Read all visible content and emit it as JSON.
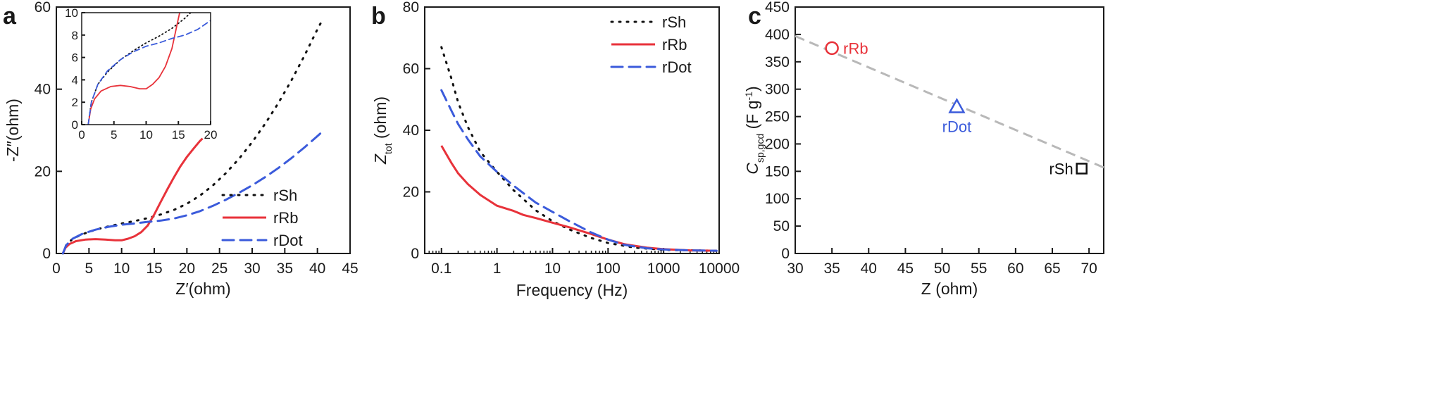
{
  "colors": {
    "rSh": "#111111",
    "rRb": "#e8323a",
    "rDot": "#3b5bdb",
    "fit": "#b8b8b8",
    "axis": "#1a1a1a"
  },
  "panels": [
    {
      "id": "a",
      "label": "a"
    },
    {
      "id": "b",
      "label": "b"
    },
    {
      "id": "c",
      "label": "c"
    }
  ],
  "chart_data": [
    {
      "panel": "a",
      "type": "line",
      "xlabel": "Z′(ohm)",
      "ylabel": "-Z″(ohm)",
      "xlim": [
        0,
        45
      ],
      "ylim": [
        0,
        60
      ],
      "xticks": [
        0,
        5,
        10,
        15,
        20,
        25,
        30,
        35,
        40,
        45
      ],
      "yticks": [
        0,
        20,
        40,
        60
      ],
      "legend": {
        "placement": "lower-right",
        "entries": [
          "rSh",
          "rRb",
          "rDot"
        ]
      },
      "series": [
        {
          "name": "rSh",
          "style": "dotted",
          "color": "#111111",
          "points": [
            [
              1,
              0
            ],
            [
              1.5,
              2
            ],
            [
              2.5,
              3.6
            ],
            [
              4,
              4.7
            ],
            [
              6,
              5.8
            ],
            [
              8,
              6.6
            ],
            [
              10,
              7.3
            ],
            [
              12,
              7.9
            ],
            [
              14,
              8.6
            ],
            [
              16,
              9.5
            ],
            [
              18,
              10.6
            ],
            [
              20,
              12.1
            ],
            [
              22,
              14.1
            ],
            [
              24,
              16.6
            ],
            [
              26,
              19.6
            ],
            [
              28,
              23.1
            ],
            [
              30,
              27.1
            ],
            [
              32,
              31.6
            ],
            [
              34,
              36.6
            ],
            [
              36,
              42.1
            ],
            [
              38,
              48.1
            ],
            [
              40,
              54.6
            ],
            [
              40.8,
              57
            ]
          ]
        },
        {
          "name": "rRb",
          "style": "solid",
          "color": "#e8323a",
          "points": [
            [
              1,
              0
            ],
            [
              1.4,
              1.4
            ],
            [
              2,
              2.3
            ],
            [
              3,
              3
            ],
            [
              4.5,
              3.4
            ],
            [
              6,
              3.5
            ],
            [
              7.5,
              3.4
            ],
            [
              9,
              3.2
            ],
            [
              10,
              3.2
            ],
            [
              11,
              3.6
            ],
            [
              12,
              4.2
            ],
            [
              13,
              5.2
            ],
            [
              14,
              6.8
            ],
            [
              15,
              9.5
            ],
            [
              16,
              12.6
            ],
            [
              17,
              15.6
            ],
            [
              18,
              18.5
            ],
            [
              19,
              21.2
            ],
            [
              20,
              23.5
            ],
            [
              21,
              25.5
            ],
            [
              22,
              27.4
            ],
            [
              22.4,
              28
            ]
          ]
        },
        {
          "name": "rDot",
          "style": "dashed",
          "color": "#3b5bdb",
          "points": [
            [
              1,
              0
            ],
            [
              1.5,
              2
            ],
            [
              2.5,
              3.6
            ],
            [
              4,
              4.8
            ],
            [
              6,
              5.8
            ],
            [
              8,
              6.5
            ],
            [
              10,
              7
            ],
            [
              12,
              7.3
            ],
            [
              14,
              7.7
            ],
            [
              16,
              8
            ],
            [
              18,
              8.5
            ],
            [
              20,
              9.3
            ],
            [
              22,
              10.3
            ],
            [
              24,
              11.6
            ],
            [
              26,
              13.1
            ],
            [
              28,
              14.8
            ],
            [
              30,
              16.6
            ],
            [
              32,
              18.6
            ],
            [
              34,
              20.8
            ],
            [
              36,
              23.2
            ],
            [
              38,
              25.8
            ],
            [
              40,
              28.6
            ],
            [
              41,
              30
            ]
          ]
        }
      ],
      "inset": {
        "xlim": [
          0,
          20
        ],
        "ylim": [
          0,
          10
        ],
        "xticks": [
          0,
          5,
          10,
          15,
          20
        ],
        "yticks": [
          0,
          2,
          4,
          6,
          8,
          10
        ],
        "series": [
          {
            "name": "rSh",
            "style": "dotted",
            "color": "#111111",
            "points": [
              [
                1,
                0
              ],
              [
                1.5,
                2
              ],
              [
                2.5,
                3.6
              ],
              [
                4,
                4.7
              ],
              [
                6,
                5.8
              ],
              [
                8,
                6.6
              ],
              [
                10,
                7.3
              ],
              [
                12,
                7.9
              ],
              [
                14,
                8.6
              ],
              [
                16,
                9.5
              ],
              [
                18,
                10.6
              ]
            ]
          },
          {
            "name": "rRb",
            "style": "solid",
            "color": "#e8323a",
            "points": [
              [
                1,
                0
              ],
              [
                1.4,
                1.4
              ],
              [
                2,
                2.3
              ],
              [
                3,
                3
              ],
              [
                4.5,
                3.4
              ],
              [
                6,
                3.5
              ],
              [
                7.5,
                3.4
              ],
              [
                9,
                3.2
              ],
              [
                10,
                3.2
              ],
              [
                11,
                3.6
              ],
              [
                12,
                4.2
              ],
              [
                13,
                5.2
              ],
              [
                14,
                6.8
              ],
              [
                15,
                9.5
              ],
              [
                15.2,
                10
              ]
            ]
          },
          {
            "name": "rDot",
            "style": "dashed",
            "color": "#3b5bdb",
            "points": [
              [
                1,
                0
              ],
              [
                1.5,
                2
              ],
              [
                2.5,
                3.6
              ],
              [
                4,
                4.8
              ],
              [
                6,
                5.8
              ],
              [
                8,
                6.5
              ],
              [
                10,
                7
              ],
              [
                12,
                7.3
              ],
              [
                14,
                7.7
              ],
              [
                16,
                8
              ],
              [
                18,
                8.5
              ],
              [
                20,
                9.3
              ]
            ]
          }
        ]
      }
    },
    {
      "panel": "b",
      "type": "line",
      "xlabel": "Frequency (Hz)",
      "ylabel": "Z",
      "ylabel_sub": "tot",
      "ylabel_unit": " (ohm)",
      "xscale": "log",
      "xlim": [
        0.05,
        10000
      ],
      "ylim": [
        0,
        80
      ],
      "xticks": [
        0.1,
        1,
        10,
        100,
        1000,
        10000
      ],
      "xtick_labels": [
        "0.1",
        "1",
        "10",
        "100",
        "1000",
        "10000"
      ],
      "yticks": [
        0,
        20,
        40,
        60,
        80
      ],
      "legend": {
        "placement": "top-right",
        "entries": [
          "rSh",
          "rRb",
          "rDot"
        ]
      },
      "series": [
        {
          "name": "rSh",
          "style": "dotted",
          "color": "#111111",
          "points": [
            [
              0.1,
              67
            ],
            [
              0.15,
              57
            ],
            [
              0.2,
              49
            ],
            [
              0.3,
              41
            ],
            [
              0.5,
              33
            ],
            [
              1,
              26.5
            ],
            [
              2,
              20.5
            ],
            [
              5,
              14
            ],
            [
              10,
              10.5
            ],
            [
              20,
              7.8
            ],
            [
              50,
              5
            ],
            [
              100,
              3.4
            ],
            [
              300,
              1.9
            ],
            [
              1000,
              1.2
            ],
            [
              3000,
              1
            ],
            [
              9000,
              0.9
            ]
          ]
        },
        {
          "name": "rRb",
          "style": "solid",
          "color": "#e8323a",
          "points": [
            [
              0.1,
              35
            ],
            [
              0.15,
              29.5
            ],
            [
              0.2,
              26
            ],
            [
              0.3,
              22.5
            ],
            [
              0.5,
              19
            ],
            [
              1,
              15.5
            ],
            [
              2,
              13.8
            ],
            [
              3,
              12.5
            ],
            [
              5,
              11.5
            ],
            [
              10,
              10
            ],
            [
              20,
              8.5
            ],
            [
              50,
              6.3
            ],
            [
              100,
              4.5
            ],
            [
              200,
              3
            ],
            [
              500,
              1.9
            ],
            [
              1000,
              1.4
            ],
            [
              3000,
              1
            ],
            [
              9000,
              0.9
            ]
          ]
        },
        {
          "name": "rDot",
          "style": "dashed",
          "color": "#3b5bdb",
          "points": [
            [
              0.1,
              53
            ],
            [
              0.15,
              46.5
            ],
            [
              0.2,
              42
            ],
            [
              0.3,
              37
            ],
            [
              0.5,
              31.5
            ],
            [
              1,
              26.5
            ],
            [
              2,
              22
            ],
            [
              5,
              16.5
            ],
            [
              10,
              13.5
            ],
            [
              20,
              10.5
            ],
            [
              50,
              6.8
            ],
            [
              100,
              4.5
            ],
            [
              200,
              2.8
            ],
            [
              500,
              1.7
            ],
            [
              1000,
              1.3
            ],
            [
              3000,
              1
            ],
            [
              9000,
              0.9
            ]
          ]
        }
      ]
    },
    {
      "panel": "c",
      "type": "scatter",
      "xlabel": "Z (ohm)",
      "ylabel": "C",
      "ylabel_sub": "sp,gcd",
      "ylabel_unit": " (F g",
      "ylabel_sup": "-1",
      "ylabel_close": ")",
      "xlim": [
        30,
        72
      ],
      "ylim": [
        0,
        450
      ],
      "xticks": [
        30,
        35,
        40,
        45,
        50,
        55,
        60,
        65,
        70
      ],
      "yticks": [
        0,
        50,
        100,
        150,
        200,
        250,
        300,
        350,
        400,
        450
      ],
      "fit_line": {
        "x": [
          30,
          72
        ],
        "y": [
          397,
          157
        ],
        "style": "dashed",
        "color": "#b8b8b8"
      },
      "points": [
        {
          "name": "rRb",
          "x": 35,
          "y": 375,
          "marker": "circle",
          "color": "#e8323a"
        },
        {
          "name": "rDot",
          "x": 52,
          "y": 268,
          "marker": "triangle",
          "color": "#3b5bdb"
        },
        {
          "name": "rSh",
          "x": 69,
          "y": 155,
          "marker": "square",
          "color": "#111111"
        }
      ]
    }
  ]
}
